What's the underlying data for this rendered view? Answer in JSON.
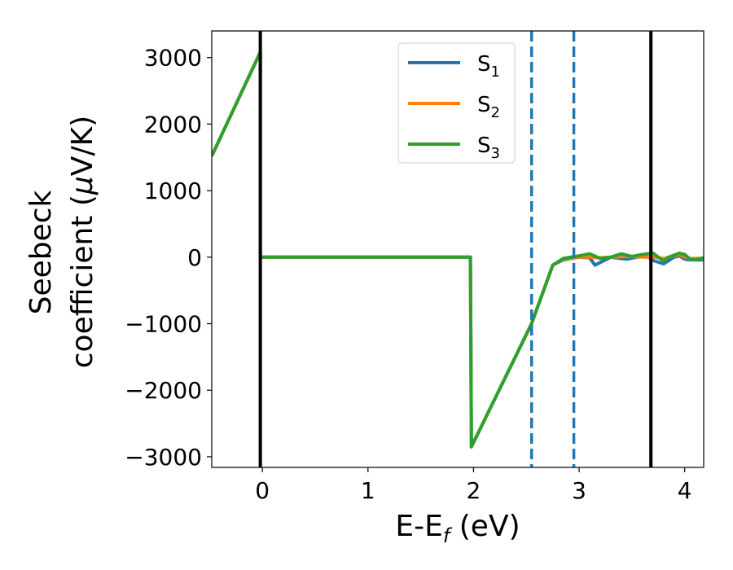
{
  "chart_data": {
    "type": "line",
    "xlabel": "E-E",
    "xlabel_sub": "f",
    "xlabel_unit": " (eV)",
    "ylabel_line1": "Seebeck",
    "ylabel_line2": "coefficient  (",
    "ylabel_mu": "μ",
    "ylabel_unit": "V/K)",
    "xlim": [
      -0.48,
      4.18
    ],
    "ylim": [
      -3160,
      3400
    ],
    "xticks": [
      0,
      1,
      2,
      3,
      4
    ],
    "xtick_labels": [
      "0",
      "1",
      "2",
      "3",
      "4"
    ],
    "yticks": [
      -3000,
      -2000,
      -1000,
      0,
      1000,
      2000,
      3000
    ],
    "ytick_labels": [
      "−3000",
      "−2000",
      "−1000",
      "0",
      "1000",
      "2000",
      "3000"
    ],
    "legend_position": "upper center",
    "grid": false,
    "series": [
      {
        "name": "S",
        "name_sub": "1",
        "color": "#1f77b4",
        "x": [
          -0.48,
          -0.02,
          -0.02,
          1.97,
          1.98,
          2.55,
          2.75,
          2.85,
          3.0,
          3.1,
          3.15,
          3.2,
          3.3,
          3.45,
          3.55,
          3.65,
          3.7,
          3.8,
          3.9,
          3.95,
          4.0,
          4.05,
          4.18
        ],
        "y": [
          1520,
          3080,
          0,
          0,
          -2850,
          -1000,
          -120,
          -40,
          0,
          -10,
          -120,
          -80,
          0,
          -30,
          0,
          10,
          -50,
          -100,
          0,
          20,
          -30,
          -40,
          -40
        ]
      },
      {
        "name": "S",
        "name_sub": "2",
        "color": "#ff7f0e",
        "x": [
          -0.48,
          -0.02,
          -0.02,
          1.97,
          1.98,
          2.55,
          2.75,
          2.85,
          3.0,
          3.1,
          3.2,
          3.3,
          3.45,
          3.6,
          3.7,
          3.8,
          3.9,
          3.95,
          4.0,
          4.05,
          4.18
        ],
        "y": [
          1520,
          3080,
          0,
          0,
          -2850,
          -1000,
          -120,
          -30,
          0,
          0,
          -10,
          0,
          10,
          0,
          0,
          -20,
          20,
          40,
          0,
          -20,
          -20
        ]
      },
      {
        "name": "S",
        "name_sub": "3",
        "color": "#2ca02c",
        "x": [
          -0.48,
          -0.02,
          -0.02,
          1.97,
          1.98,
          2.55,
          2.75,
          2.85,
          3.0,
          3.1,
          3.2,
          3.3,
          3.4,
          3.5,
          3.6,
          3.7,
          3.8,
          3.85,
          3.95,
          4.0,
          4.05,
          4.1,
          4.18
        ],
        "y": [
          1520,
          3080,
          0,
          0,
          -2850,
          -1000,
          -120,
          -20,
          20,
          50,
          -20,
          0,
          50,
          10,
          40,
          60,
          -60,
          0,
          60,
          40,
          -30,
          -40,
          -10
        ]
      }
    ],
    "vertical_lines": [
      {
        "x": -0.02,
        "color": "#000000",
        "style": "solid"
      },
      {
        "x": 3.68,
        "color": "#000000",
        "style": "solid"
      },
      {
        "x": 2.55,
        "color": "#1f77b4",
        "style": "dashed"
      },
      {
        "x": 2.95,
        "color": "#1f77b4",
        "style": "dashed"
      }
    ]
  }
}
